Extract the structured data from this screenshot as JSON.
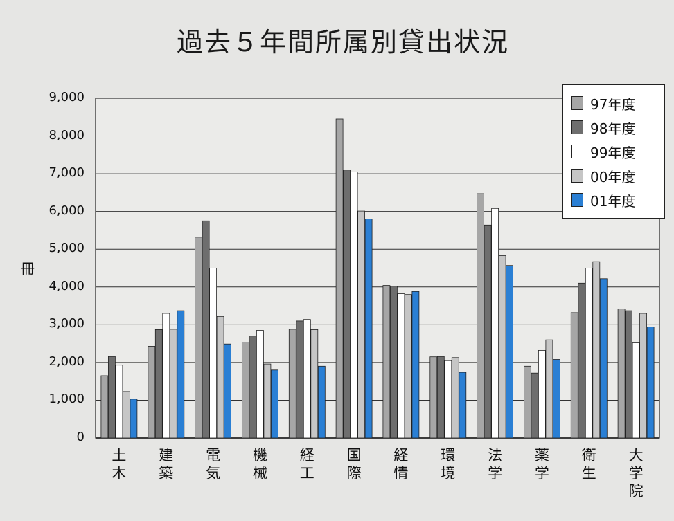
{
  "chart_data": {
    "type": "bar",
    "title": "過去５年間所属別貸出状況",
    "ylabel": "冊",
    "xlabel": "",
    "ylim": [
      0,
      9000
    ],
    "yticks": [
      "0",
      "1,000",
      "2,000",
      "3,000",
      "4,000",
      "5,000",
      "6,000",
      "7,000",
      "8,000",
      "9,000"
    ],
    "categories": [
      "土木",
      "建築",
      "電気",
      "機械",
      "経工",
      "国際",
      "経情",
      "環境",
      "法学",
      "薬学",
      "衛生",
      "大学院"
    ],
    "series": [
      {
        "name": "97年度",
        "color": "#a6a6a6",
        "values": [
          1650,
          2430,
          5320,
          2540,
          2880,
          8450,
          4040,
          2150,
          6470,
          1900,
          3320,
          3420
        ]
      },
      {
        "name": "98年度",
        "color": "#6e6e6e",
        "values": [
          2160,
          2870,
          5750,
          2700,
          3100,
          7100,
          4020,
          2160,
          5640,
          1720,
          4100,
          3370
        ]
      },
      {
        "name": "99年度",
        "color": "#ffffff",
        "values": [
          1930,
          3300,
          4500,
          2850,
          3140,
          7050,
          3820,
          2050,
          6080,
          2320,
          4500,
          2520
        ]
      },
      {
        "name": "00年度",
        "color": "#c6c6c6",
        "values": [
          1230,
          2880,
          3220,
          1960,
          2870,
          6010,
          3800,
          2130,
          4830,
          2600,
          4670,
          3300
        ]
      },
      {
        "name": "01年度",
        "color": "#2a7fd4",
        "values": [
          1030,
          3370,
          2490,
          1800,
          1900,
          5800,
          3880,
          1740,
          4570,
          2080,
          4220,
          2940
        ]
      }
    ],
    "legend_position": "top-right",
    "grid": true
  }
}
